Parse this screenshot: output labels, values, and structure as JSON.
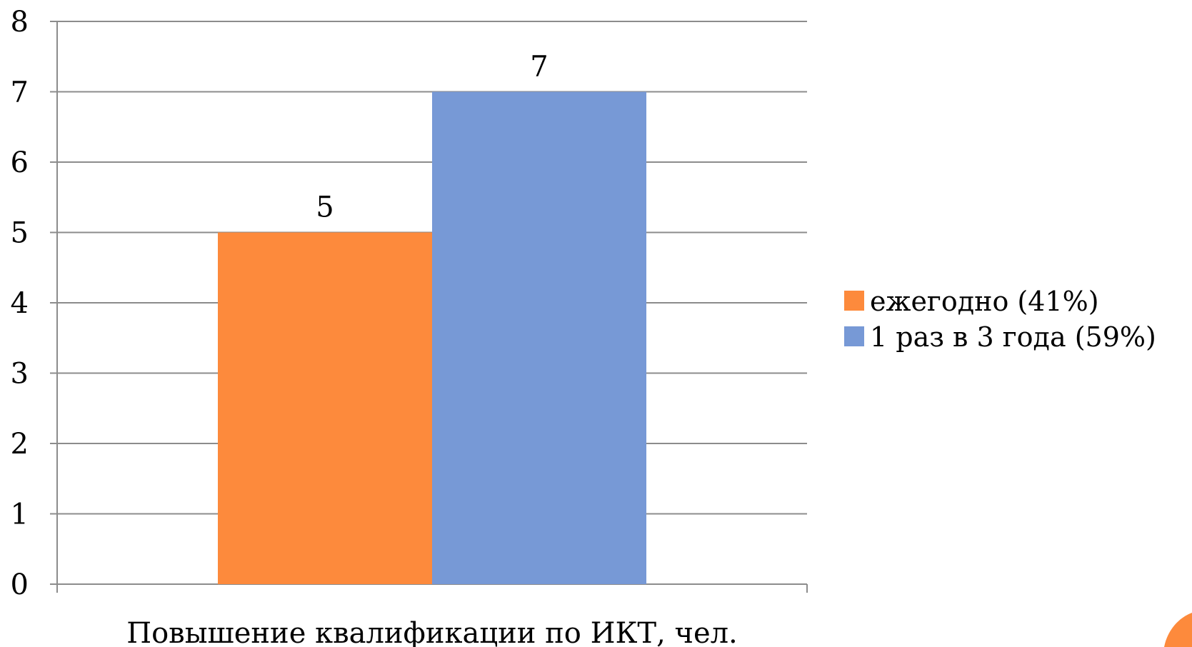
{
  "chart_data": {
    "type": "bar",
    "categories": [
      "Повышение квалификации по ИКТ, чел."
    ],
    "series": [
      {
        "name": "ежегодно (41%)",
        "values": [
          5
        ],
        "color": "#fd8a3c"
      },
      {
        "name": "1 раз в 3 года (59%)",
        "values": [
          7
        ],
        "color": "#7799d6"
      }
    ],
    "data_labels": [
      "5",
      "7"
    ],
    "ylim": [
      0,
      8
    ],
    "yticks": [
      "0",
      "1",
      "2",
      "3",
      "4",
      "5",
      "6",
      "7",
      "8"
    ],
    "grid": true,
    "legend_position": "right",
    "title": "",
    "xlabel": "",
    "ylabel": ""
  },
  "corner_accent_color": "#fd8a3c"
}
